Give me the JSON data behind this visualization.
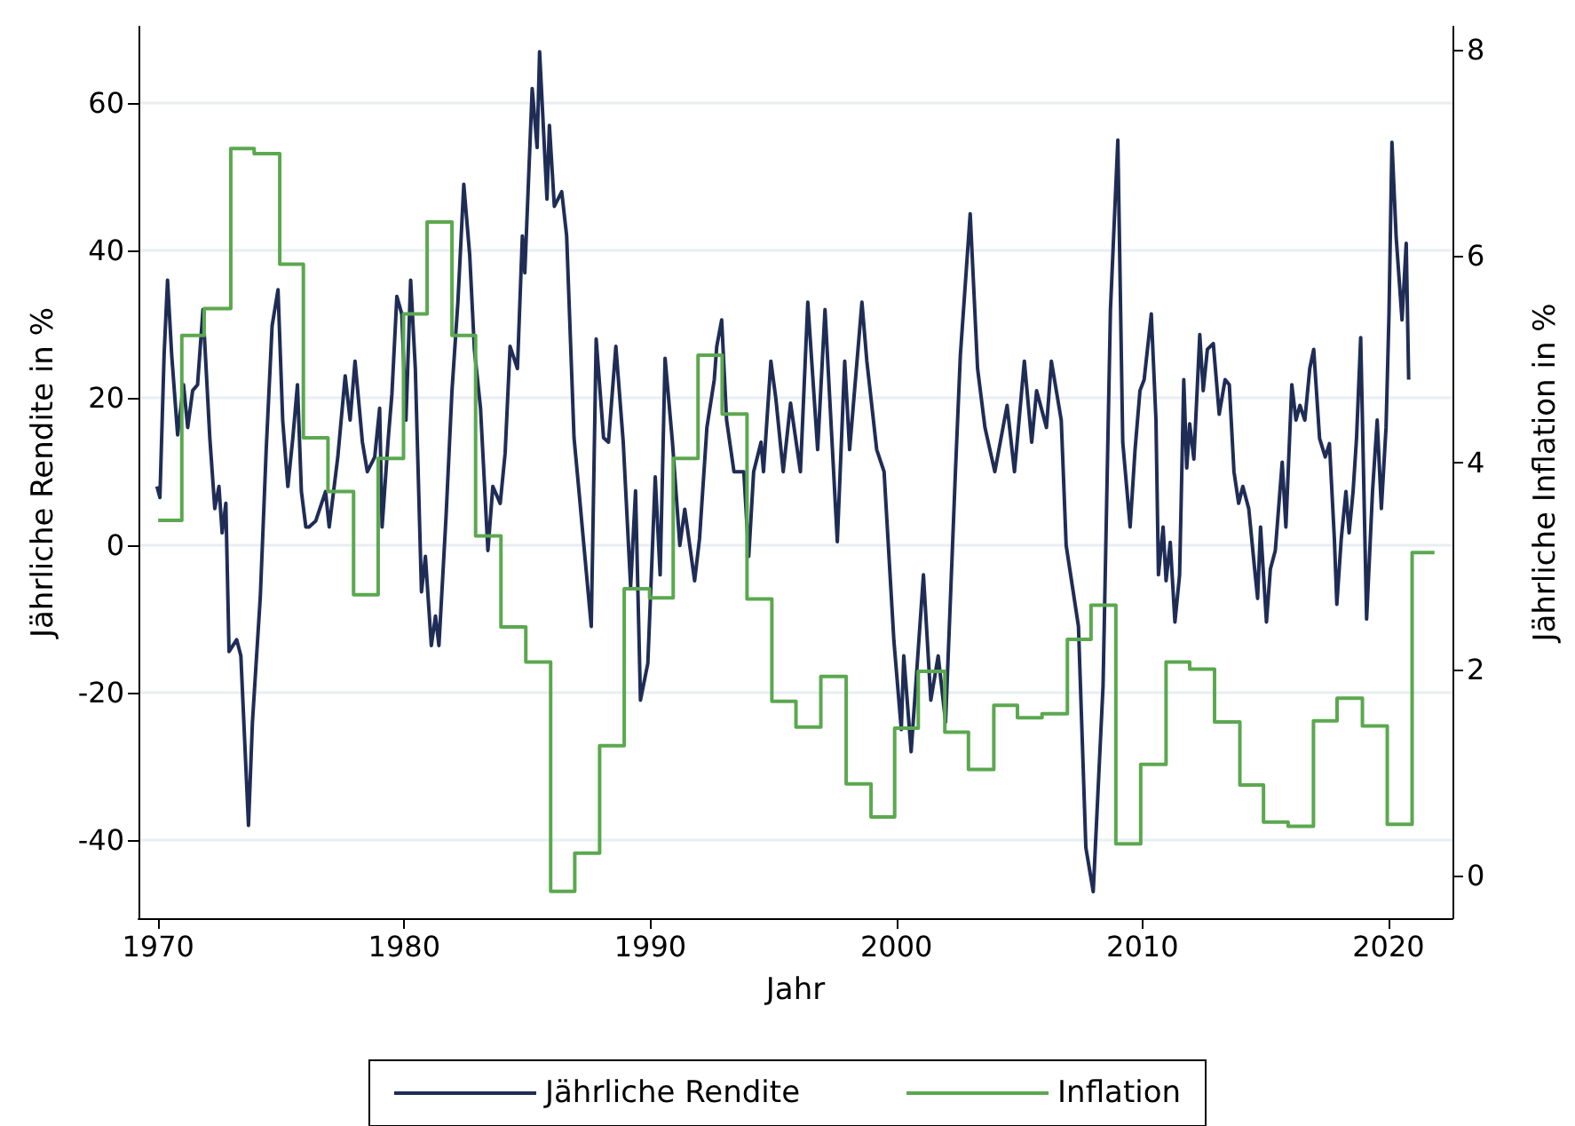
{
  "chart_data": {
    "type": "line",
    "xlabel": "Jahr",
    "ylabel": "Jährliche Rendite in %",
    "y2label": "Jährliche Inflation in %",
    "xlim": [
      1969.2,
      2022.6
    ],
    "xticks": [
      1970,
      1980,
      1990,
      2000,
      2010,
      2020
    ],
    "ylim": [
      -50.6,
      70.4
    ],
    "yticks": [
      -40,
      -20,
      0,
      20,
      40,
      60
    ],
    "y2lim": [
      -0.41,
      8.22
    ],
    "y2ticks": [
      0,
      2,
      4,
      6,
      8
    ],
    "grid": "y",
    "legend": "bottom",
    "marker": "none",
    "line_style": "solid",
    "series": [
      {
        "name": "Jährliche Rendite",
        "color": "#1f2d56",
        "x": [
          1969.95,
          1970.07,
          1970.24,
          1970.38,
          1970.55,
          1970.79,
          1971.03,
          1971.2,
          1971.4,
          1971.6,
          1971.82,
          1972.1,
          1972.3,
          1972.47,
          1972.6,
          1972.75,
          1972.88,
          1973.19,
          1973.36,
          1973.67,
          1973.83,
          1974.15,
          1974.39,
          1974.63,
          1974.87,
          1975.06,
          1975.27,
          1975.47,
          1975.66,
          1975.82,
          1976.0,
          1976.13,
          1976.4,
          1976.8,
          1976.95,
          1977.3,
          1977.6,
          1977.8,
          1978.0,
          1978.3,
          1978.5,
          1978.8,
          1979.0,
          1979.1,
          1979.35,
          1979.5,
          1979.7,
          1979.9,
          1980.07,
          1980.26,
          1980.45,
          1980.7,
          1980.86,
          1981.1,
          1981.27,
          1981.41,
          1981.7,
          1981.94,
          1982.18,
          1982.42,
          1982.66,
          1982.85,
          1983.1,
          1983.4,
          1983.6,
          1983.9,
          1984.1,
          1984.3,
          1984.6,
          1984.8,
          1984.9,
          1985.2,
          1985.4,
          1985.5,
          1985.8,
          1985.9,
          1986.1,
          1986.4,
          1986.6,
          1986.9,
          1987.1,
          1987.3,
          1987.6,
          1987.8,
          1988.1,
          1988.3,
          1988.6,
          1988.9,
          1989.2,
          1989.4,
          1989.6,
          1989.9,
          1990.2,
          1990.4,
          1990.6,
          1990.9,
          1991.2,
          1991.4,
          1991.8,
          1992.0,
          1992.3,
          1992.6,
          1992.7,
          1992.9,
          1993.1,
          1993.4,
          1993.8,
          1994.0,
          1994.2,
          1994.5,
          1994.6,
          1994.9,
          1995.1,
          1995.4,
          1995.7,
          1996.1,
          1996.4,
          1996.8,
          1997.1,
          1997.6,
          1997.9,
          1998.1,
          1998.6,
          1998.8,
          1999.2,
          1999.5,
          1999.9,
          2000.2,
          2000.3,
          2000.6,
          2001.1,
          2001.4,
          2001.7,
          2002.0,
          2002.4,
          2002.6,
          2003.0,
          2003.3,
          2003.6,
          2004.0,
          2004.5,
          2004.8,
          2005.2,
          2005.5,
          2005.7,
          2006.1,
          2006.3,
          2006.7,
          2006.9,
          2007.4,
          2007.7,
          2008.0,
          2008.4,
          2008.7,
          2009.0,
          2009.2,
          2009.5,
          2009.7,
          2009.9,
          2010.07,
          2010.36,
          2010.55,
          2010.65,
          2010.84,
          2010.96,
          2011.13,
          2011.32,
          2011.51,
          2011.68,
          2011.8,
          2011.92,
          2012.09,
          2012.33,
          2012.47,
          2012.64,
          2012.88,
          2013.12,
          2013.36,
          2013.53,
          2013.72,
          2013.91,
          2014.08,
          2014.32,
          2014.56,
          2014.68,
          2014.8,
          2015.04,
          2015.2,
          2015.4,
          2015.68,
          2015.83,
          2016.07,
          2016.24,
          2016.4,
          2016.6,
          2016.8,
          2016.96,
          2017.2,
          2017.43,
          2017.6,
          2017.8,
          2017.9,
          2018.08,
          2018.27,
          2018.4,
          2018.56,
          2018.7,
          2018.87,
          2019.11,
          2019.35,
          2019.54,
          2019.71,
          2019.9,
          2020.02,
          2020.14,
          2020.31,
          2020.55,
          2020.72,
          2020.82
        ],
        "values": [
          8,
          6.5,
          25.8,
          36,
          25.8,
          15,
          21.8,
          16,
          21,
          21.8,
          32,
          14.5,
          5,
          8,
          1.7,
          5.7,
          -14.4,
          -12.8,
          -15,
          -38,
          -24,
          -7,
          13,
          29.8,
          34.7,
          17,
          8,
          14.5,
          21.8,
          7.3,
          2.5,
          2.5,
          3.3,
          7.3,
          2.5,
          12,
          23,
          17,
          25,
          14,
          10,
          12,
          18.6,
          2.5,
          14.5,
          20.6,
          33.8,
          31.4,
          17,
          36,
          24,
          -6.3,
          -1.5,
          -13.6,
          -9.6,
          -13.6,
          4,
          21,
          33,
          49,
          39.4,
          26.6,
          18.6,
          -0.7,
          8,
          5.7,
          12.5,
          27,
          24,
          42,
          37,
          62,
          54,
          67,
          47,
          57,
          46,
          48,
          42,
          14.6,
          7.4,
          0,
          -11,
          28,
          14.6,
          14,
          27,
          14,
          -5.6,
          7.4,
          -21,
          -16,
          9.3,
          -4,
          25.4,
          14,
          0,
          4.9,
          -4.8,
          0.9,
          16,
          22.5,
          27,
          30.6,
          17,
          10,
          10,
          -1.5,
          10,
          14,
          10,
          25,
          20,
          10,
          19.3,
          10,
          33,
          13,
          32,
          0.5,
          25,
          13,
          33,
          25,
          13,
          10,
          -13,
          -25,
          -15,
          -28,
          -4,
          -21,
          -15,
          -24,
          10,
          25.8,
          45,
          24,
          16,
          10,
          19,
          10,
          25,
          14,
          21,
          16,
          25,
          17,
          0,
          -11,
          -41,
          -47,
          -19,
          32,
          55,
          14,
          2.5,
          13,
          21,
          22.5,
          31.4,
          17,
          -4,
          2.5,
          -4.8,
          0.4,
          -10.4,
          -4,
          22.5,
          10.5,
          16.5,
          11.7,
          28.6,
          21,
          26.6,
          27.4,
          17.8,
          22.5,
          21.8,
          10,
          5.7,
          8,
          5,
          -3.2,
          -7.2,
          2.5,
          -10.4,
          -3.2,
          -0.7,
          11.3,
          2.5,
          21.8,
          17,
          19,
          17,
          24,
          26.6,
          14.5,
          12,
          13.8,
          0.9,
          -8,
          0.9,
          7.3,
          1.7,
          7.3,
          14.5,
          28.2,
          -10,
          7.3,
          17,
          5,
          16,
          31.4,
          54.7,
          41.9,
          30.6,
          41,
          22.5
        ]
      },
      {
        "name": "Inflation",
        "type": "step",
        "axis": "y2",
        "color": "#5ba84f",
        "x": [
          1970.0,
          1970.96,
          1971.87,
          1972.95,
          1973.9,
          1974.94,
          1975.9,
          1976.9,
          1977.94,
          1978.94,
          1979.97,
          1980.93,
          1981.94,
          1982.9,
          1983.93,
          1984.94,
          1985.95,
          1986.93,
          1987.94,
          1988.94,
          1989.97,
          1990.93,
          1991.94,
          1992.92,
          1993.93,
          1994.94,
          1995.92,
          1996.93,
          1997.96,
          1998.97,
          1999.93,
          2000.89,
          2001.97,
          2002.93,
          2003.96,
          2004.92,
          2005.92,
          2006.95,
          2007.91,
          2008.92,
          2009.93,
          2010.96,
          2011.92,
          2012.93,
          2013.96,
          2014.92,
          2015.92,
          2016.95,
          2017.91,
          2018.94,
          2019.95,
          2020.96,
          2021.87
        ],
        "values": [
          3.44,
          5.23,
          5.49,
          7.04,
          6.99,
          5.92,
          4.24,
          3.72,
          2.72,
          4.04,
          5.44,
          6.33,
          5.23,
          3.29,
          2.41,
          2.07,
          -0.15,
          0.22,
          1.26,
          2.78,
          2.69,
          4.04,
          5.04,
          4.47,
          2.68,
          1.69,
          1.44,
          1.93,
          0.89,
          0.57,
          1.43,
          1.98,
          1.39,
          1.03,
          1.65,
          1.53,
          1.57,
          2.29,
          2.62,
          0.31,
          1.08,
          2.07,
          2.0,
          1.49,
          0.88,
          0.52,
          0.48,
          1.5,
          1.72,
          1.45,
          0.5,
          3.13,
          3.13
        ]
      }
    ]
  }
}
